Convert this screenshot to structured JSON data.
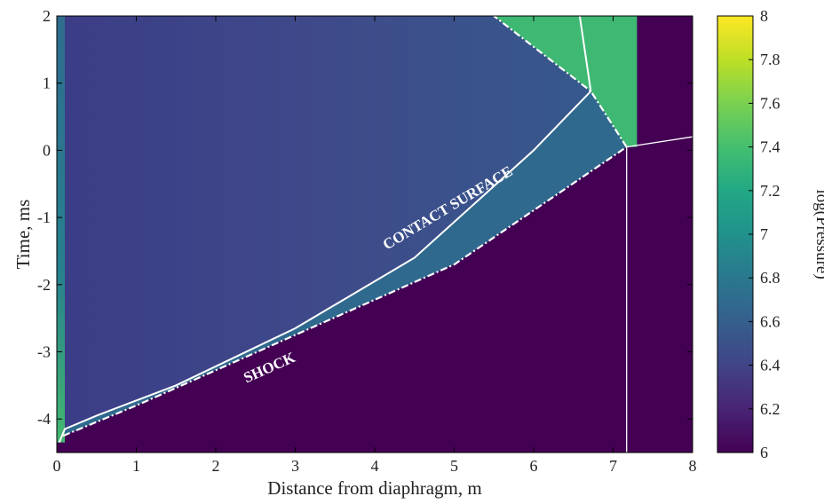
{
  "chart_data": {
    "type": "heatmap",
    "title": "",
    "xlabel": "Distance from diaphragm, m",
    "ylabel": "Time, ms",
    "xlim": [
      0,
      8
    ],
    "ylim": [
      -4.5,
      2
    ],
    "xticks": [
      "0",
      "1",
      "2",
      "3",
      "4",
      "5",
      "6",
      "7",
      "8"
    ],
    "yticks": [
      "-4",
      "-3",
      "-2",
      "-1",
      "0",
      "1",
      "2"
    ],
    "colorbar": {
      "label": "log(Pressure)",
      "range": [
        6,
        8
      ],
      "ticks": [
        "6",
        "6.2",
        "6.4",
        "6.6",
        "6.8",
        "7",
        "7.2",
        "7.4",
        "7.6",
        "7.8",
        "8"
      ],
      "colormap": "viridis"
    },
    "annotations": [
      {
        "text": "CONTACT SURFACE",
        "x": 4.95,
        "y": -0.92
      },
      {
        "text": "SHOCK",
        "x": 2.7,
        "y": -3.3
      }
    ],
    "regions": [
      {
        "name": "driver-expansion",
        "log_pressure": 6.35
      },
      {
        "name": "shocked-gas",
        "log_pressure": 6.62
      },
      {
        "name": "undisturbed-gas",
        "log_pressure": 6.0
      },
      {
        "name": "reflected-shock-region",
        "log_pressure": 7.3
      }
    ],
    "lines": [
      {
        "name": "shock",
        "style": "dash-dot",
        "points": [
          [
            0.08,
            -4.25
          ],
          [
            1.0,
            -3.8
          ],
          [
            3.0,
            -2.75
          ],
          [
            5.0,
            -1.7
          ],
          [
            7.17,
            0.05
          ]
        ]
      },
      {
        "name": "contact-surface",
        "style": "solid",
        "points": [
          [
            0.03,
            -4.35
          ],
          [
            0.1,
            -4.15
          ],
          [
            0.5,
            -3.95
          ],
          [
            1.5,
            -3.5
          ],
          [
            3.0,
            -2.65
          ],
          [
            4.5,
            -1.6
          ],
          [
            6.0,
            0.0
          ],
          [
            6.72,
            0.88
          ]
        ]
      },
      {
        "name": "reflected-shock",
        "style": "dash-dot",
        "points": [
          [
            7.17,
            0.05
          ],
          [
            6.72,
            0.88
          ],
          [
            5.5,
            2.0
          ]
        ]
      },
      {
        "name": "reflected-contact",
        "style": "solid",
        "points": [
          [
            6.72,
            0.88
          ],
          [
            6.58,
            2.0
          ]
        ]
      },
      {
        "name": "endwall-line",
        "style": "solid",
        "points": [
          [
            7.17,
            -4.5
          ],
          [
            7.17,
            0.05
          ]
        ]
      },
      {
        "name": "transmitted-line",
        "style": "solid",
        "points": [
          [
            7.17,
            0.05
          ],
          [
            8.0,
            0.2
          ]
        ]
      }
    ]
  }
}
